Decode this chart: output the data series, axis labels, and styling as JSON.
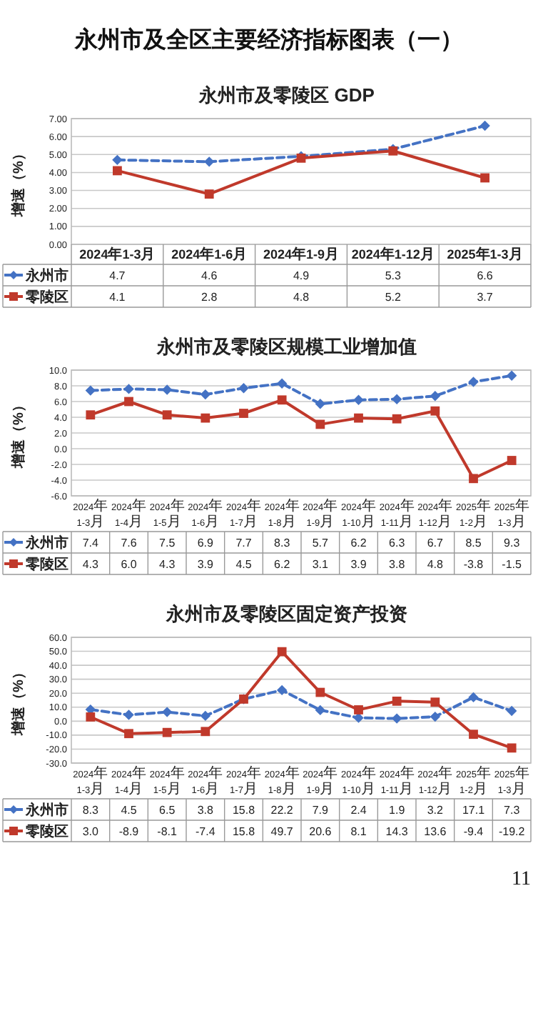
{
  "chart_data": [
    {
      "type": "line",
      "title": "永州市及零陵区 GDP",
      "ylabel": "增速（%）",
      "annotations": [
        "永州市及全区主要经济指标图表（一）"
      ],
      "categories": [
        "2024年1-3月",
        "2024年1-6月",
        "2024年1-9月",
        "2024年1-12月",
        "2025年1-3月"
      ],
      "series": [
        {
          "name": "永州市",
          "color": "#4472c4",
          "marker": "diamond",
          "line_style": "dashed",
          "values": [
            4.7,
            4.6,
            4.9,
            5.3,
            6.6
          ]
        },
        {
          "name": "零陵区",
          "color": "#c0392b",
          "marker": "square",
          "line_style": "solid",
          "values": [
            4.1,
            2.8,
            4.8,
            5.2,
            3.7
          ]
        }
      ],
      "ylim": [
        0,
        7
      ],
      "yticks": [
        {
          "value": 0,
          "label": "0.00"
        },
        {
          "value": 1,
          "label": "1.00"
        },
        {
          "value": 2,
          "label": "2.00"
        },
        {
          "value": 3,
          "label": "3.00"
        },
        {
          "value": 4,
          "label": "4.00"
        },
        {
          "value": 5,
          "label": "5.00"
        },
        {
          "value": 6,
          "label": "6.00"
        },
        {
          "value": 7,
          "label": "7.00"
        }
      ],
      "grid": "y",
      "legend": "bottom",
      "data_labels": true
    },
    {
      "type": "line",
      "title": "永州市及零陵区规模工业增加值",
      "ylabel": "增速（%）",
      "categories": [
        "2024年\n1-3月",
        "2024年\n1-4月",
        "2024年\n1-5月",
        "2024年\n1-6月",
        "2024年\n1-7月",
        "2024年\n1-8月",
        "2024年\n1-9月",
        "2024年\n1-10月",
        "2024年\n1-11月",
        "2024年\n1-12月",
        "2025年\n1-2月",
        "2025年\n1-3月"
      ],
      "series": [
        {
          "name": "永州市",
          "color": "#4472c4",
          "marker": "diamond",
          "line_style": "dashed",
          "values": [
            7.4,
            7.6,
            7.5,
            6.9,
            7.7,
            8.3,
            5.7,
            6.2,
            6.3,
            6.7,
            8.5,
            9.3
          ],
          "value_labels": [
            "7.4",
            "7.6",
            "7.5",
            "6.9",
            "7.7",
            "8.3",
            "5.7",
            "6.2",
            "6.3",
            "6.7",
            "8.5",
            "9.3"
          ]
        },
        {
          "name": "零陵区",
          "color": "#c0392b",
          "marker": "square",
          "line_style": "solid",
          "values": [
            4.3,
            6.0,
            4.3,
            3.9,
            4.5,
            6.2,
            3.1,
            3.9,
            3.8,
            4.8,
            -3.8,
            -1.5
          ],
          "value_labels": [
            "4.3",
            "6.0",
            "4.3",
            "3.9",
            "4.5",
            "6.2",
            "3.1",
            "3.9",
            "3.8",
            "4.8",
            "-3.8",
            "-1.5"
          ]
        }
      ],
      "ylim": [
        -6,
        10
      ],
      "yticks": [
        {
          "value": -6,
          "label": "-6.0"
        },
        {
          "value": -4,
          "label": "-4.0"
        },
        {
          "value": -2,
          "label": "-2.0"
        },
        {
          "value": 0,
          "label": "0.0"
        },
        {
          "value": 2,
          "label": "2.0"
        },
        {
          "value": 4,
          "label": "4.0"
        },
        {
          "value": 6,
          "label": "6.0"
        },
        {
          "value": 8,
          "label": "8.0"
        },
        {
          "value": 10,
          "label": "10.0"
        }
      ],
      "grid": "y",
      "legend": "bottom"
    },
    {
      "type": "line",
      "title": "永州市及零陵区固定资产投资",
      "ylabel": "增速（%）",
      "annotations": [
        "11"
      ],
      "categories": [
        "2024年\n1-3月",
        "2024年\n1-4月",
        "2024年\n1-5月",
        "2024年\n1-6月",
        "2024年\n1-7月",
        "2024年\n1-8月",
        "2024年\n1-9月",
        "2024年\n1-10月",
        "2024年\n1-11月",
        "2024年\n1-12月",
        "2025年\n1-2月",
        "2025年\n1-3月"
      ],
      "series": [
        {
          "name": "永州市",
          "color": "#4472c4",
          "marker": "diamond",
          "line_style": "dashed",
          "values": [
            8.3,
            4.5,
            6.5,
            3.8,
            15.8,
            22.2,
            7.9,
            2.4,
            1.9,
            3.2,
            17.1,
            7.3
          ],
          "value_labels": [
            "8.3",
            "4.5",
            "6.5",
            "3.8",
            "15.8",
            "22.2",
            "7.9",
            "2.4",
            "1.9",
            "3.2",
            "17.1",
            "7.3"
          ]
        },
        {
          "name": "零陵区",
          "color": "#c0392b",
          "marker": "square",
          "line_style": "solid",
          "values": [
            3.0,
            -8.9,
            -8.1,
            -7.4,
            15.8,
            49.7,
            20.6,
            8.1,
            14.3,
            13.6,
            -9.4,
            -19.2
          ],
          "value_labels": [
            "3.0",
            "-8.9",
            "-8.1",
            "-7.4",
            "15.8",
            "49.7",
            "20.6",
            "8.1",
            "14.3",
            "13.6",
            "-9.4",
            "-19.2"
          ]
        }
      ],
      "ylim": [
        -30,
        60
      ],
      "yticks": [
        {
          "value": -30,
          "label": "-30.0"
        },
        {
          "value": -20,
          "label": "-20.0"
        },
        {
          "value": -10,
          "label": "-10.0"
        },
        {
          "value": 0,
          "label": "0.0"
        },
        {
          "value": 10,
          "label": "10.0"
        },
        {
          "value": 20,
          "label": "20.0"
        },
        {
          "value": 30,
          "label": "30.0"
        },
        {
          "value": 40,
          "label": "40.0"
        },
        {
          "value": 50,
          "label": "50.0"
        },
        {
          "value": 60,
          "label": "60.0"
        }
      ],
      "grid": "y",
      "legend": "bottom"
    }
  ]
}
